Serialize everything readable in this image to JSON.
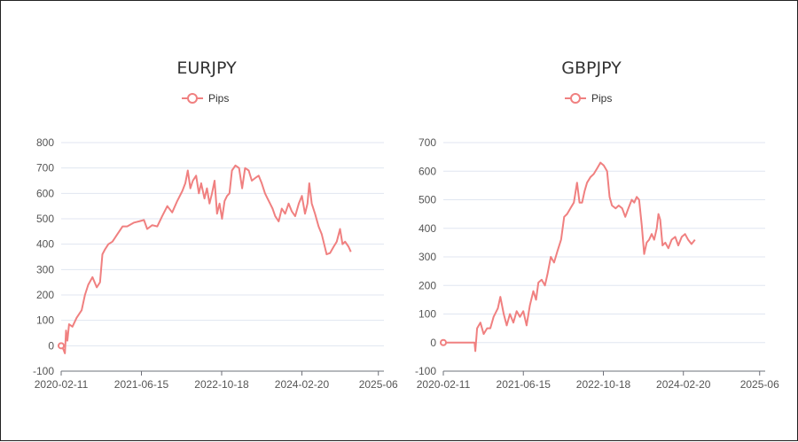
{
  "colors": {
    "series": "#f08080",
    "grid": "#e0e6f1",
    "axis": "#6e7079"
  },
  "chart_data": [
    {
      "type": "line",
      "title": "EURJPY",
      "legend": "Pips",
      "ylim": [
        -100,
        800
      ],
      "yticks": [
        -100,
        0,
        100,
        200,
        300,
        400,
        500,
        600,
        700,
        800
      ],
      "xticks": [
        "2020-02-11",
        "2021-06-15",
        "2022-10-18",
        "2024-02-20",
        "2025-06"
      ],
      "xlim": [
        "2020-02-11",
        "2025-07-05"
      ],
      "grid": true,
      "series": [
        {
          "name": "Pips",
          "points": [
            [
              "2020-02-11",
              0
            ],
            [
              "2020-02-25",
              -15
            ],
            [
              "2020-03-05",
              -30
            ],
            [
              "2020-03-12",
              60
            ],
            [
              "2020-03-20",
              20
            ],
            [
              "2020-03-30",
              85
            ],
            [
              "2020-04-20",
              75
            ],
            [
              "2020-05-15",
              110
            ],
            [
              "2020-06-15",
              140
            ],
            [
              "2020-07-05",
              200
            ],
            [
              "2020-07-25",
              240
            ],
            [
              "2020-08-20",
              270
            ],
            [
              "2020-09-15",
              230
            ],
            [
              "2020-10-05",
              250
            ],
            [
              "2020-10-20",
              360
            ],
            [
              "2020-11-05",
              380
            ],
            [
              "2020-11-25",
              400
            ],
            [
              "2020-12-20",
              410
            ],
            [
              "2021-01-20",
              440
            ],
            [
              "2021-02-20",
              470
            ],
            [
              "2021-03-20",
              470
            ],
            [
              "2021-05-01",
              485
            ],
            [
              "2021-06-01",
              490
            ],
            [
              "2021-07-01",
              495
            ],
            [
              "2021-07-20",
              460
            ],
            [
              "2021-08-20",
              475
            ],
            [
              "2021-09-20",
              470
            ],
            [
              "2021-10-20",
              510
            ],
            [
              "2021-11-20",
              550
            ],
            [
              "2021-12-20",
              525
            ],
            [
              "2022-01-20",
              570
            ],
            [
              "2022-02-20",
              610
            ],
            [
              "2022-03-10",
              640
            ],
            [
              "2022-03-25",
              690
            ],
            [
              "2022-04-10",
              620
            ],
            [
              "2022-04-25",
              650
            ],
            [
              "2022-05-15",
              670
            ],
            [
              "2022-06-01",
              600
            ],
            [
              "2022-06-15",
              640
            ],
            [
              "2022-07-05",
              580
            ],
            [
              "2022-07-20",
              620
            ],
            [
              "2022-08-05",
              560
            ],
            [
              "2022-08-20",
              600
            ],
            [
              "2022-09-05",
              650
            ],
            [
              "2022-09-20",
              520
            ],
            [
              "2022-10-05",
              560
            ],
            [
              "2022-10-20",
              500
            ],
            [
              "2022-11-05",
              570
            ],
            [
              "2022-11-20",
              590
            ],
            [
              "2022-12-05",
              600
            ],
            [
              "2022-12-20",
              690
            ],
            [
              "2023-01-10",
              710
            ],
            [
              "2023-02-01",
              700
            ],
            [
              "2023-02-20",
              620
            ],
            [
              "2023-03-10",
              700
            ],
            [
              "2023-04-01",
              690
            ],
            [
              "2023-04-20",
              650
            ],
            [
              "2023-05-10",
              660
            ],
            [
              "2023-06-01",
              670
            ],
            [
              "2023-06-20",
              640
            ],
            [
              "2023-07-10",
              600
            ],
            [
              "2023-07-25",
              580
            ],
            [
              "2023-08-10",
              560
            ],
            [
              "2023-08-25",
              540
            ],
            [
              "2023-09-10",
              510
            ],
            [
              "2023-10-01",
              490
            ],
            [
              "2023-10-20",
              540
            ],
            [
              "2023-11-10",
              520
            ],
            [
              "2023-12-01",
              560
            ],
            [
              "2023-12-20",
              530
            ],
            [
              "2024-01-10",
              510
            ],
            [
              "2024-02-01",
              560
            ],
            [
              "2024-02-20",
              590
            ],
            [
              "2024-03-10",
              520
            ],
            [
              "2024-03-25",
              560
            ],
            [
              "2024-04-05",
              640
            ],
            [
              "2024-04-20",
              560
            ],
            [
              "2024-05-10",
              520
            ],
            [
              "2024-06-01",
              470
            ],
            [
              "2024-06-20",
              440
            ],
            [
              "2024-07-05",
              400
            ],
            [
              "2024-07-20",
              360
            ],
            [
              "2024-08-10",
              365
            ],
            [
              "2024-09-01",
              390
            ],
            [
              "2024-09-20",
              410
            ],
            [
              "2024-10-10",
              460
            ],
            [
              "2024-10-25",
              400
            ],
            [
              "2024-11-10",
              410
            ],
            [
              "2024-12-01",
              390
            ],
            [
              "2024-12-15",
              370
            ]
          ]
        }
      ]
    },
    {
      "type": "line",
      "title": "GBPJPY",
      "legend": "Pips",
      "ylim": [
        -100,
        700
      ],
      "yticks": [
        -100,
        0,
        100,
        200,
        300,
        400,
        500,
        600,
        700
      ],
      "xticks": [
        "2020-02-11",
        "2021-06-15",
        "2022-10-18",
        "2024-02-20",
        "2025-06"
      ],
      "xlim": [
        "2020-02-11",
        "2025-07-05"
      ],
      "grid": true,
      "series": [
        {
          "name": "Pips",
          "points": [
            [
              "2020-02-11",
              0
            ],
            [
              "2020-08-20",
              0
            ],
            [
              "2020-08-25",
              -30
            ],
            [
              "2020-09-05",
              50
            ],
            [
              "2020-09-25",
              70
            ],
            [
              "2020-10-15",
              30
            ],
            [
              "2020-11-05",
              50
            ],
            [
              "2020-11-25",
              50
            ],
            [
              "2020-12-15",
              90
            ],
            [
              "2021-01-10",
              120
            ],
            [
              "2021-01-25",
              160
            ],
            [
              "2021-02-15",
              100
            ],
            [
              "2021-03-05",
              60
            ],
            [
              "2021-03-25",
              100
            ],
            [
              "2021-04-15",
              70
            ],
            [
              "2021-05-05",
              110
            ],
            [
              "2021-05-25",
              90
            ],
            [
              "2021-06-15",
              110
            ],
            [
              "2021-07-05",
              60
            ],
            [
              "2021-07-25",
              130
            ],
            [
              "2021-08-15",
              180
            ],
            [
              "2021-09-01",
              150
            ],
            [
              "2021-09-15",
              210
            ],
            [
              "2021-10-05",
              220
            ],
            [
              "2021-10-25",
              200
            ],
            [
              "2021-11-10",
              240
            ],
            [
              "2021-11-30",
              300
            ],
            [
              "2021-12-20",
              280
            ],
            [
              "2022-01-10",
              320
            ],
            [
              "2022-02-01",
              360
            ],
            [
              "2022-02-20",
              440
            ],
            [
              "2022-03-10",
              450
            ],
            [
              "2022-03-30",
              470
            ],
            [
              "2022-04-20",
              490
            ],
            [
              "2022-05-10",
              560
            ],
            [
              "2022-05-25",
              490
            ],
            [
              "2022-06-10",
              490
            ],
            [
              "2022-06-25",
              530
            ],
            [
              "2022-07-10",
              560
            ],
            [
              "2022-08-01",
              580
            ],
            [
              "2022-08-20",
              590
            ],
            [
              "2022-09-10",
              610
            ],
            [
              "2022-09-30",
              630
            ],
            [
              "2022-10-20",
              620
            ],
            [
              "2022-11-10",
              600
            ],
            [
              "2022-11-25",
              510
            ],
            [
              "2022-12-10",
              480
            ],
            [
              "2023-01-01",
              470
            ],
            [
              "2023-01-20",
              480
            ],
            [
              "2023-02-10",
              470
            ],
            [
              "2023-03-01",
              440
            ],
            [
              "2023-03-20",
              470
            ],
            [
              "2023-04-10",
              500
            ],
            [
              "2023-04-25",
              490
            ],
            [
              "2023-05-10",
              510
            ],
            [
              "2023-05-25",
              500
            ],
            [
              "2023-06-10",
              410
            ],
            [
              "2023-06-25",
              310
            ],
            [
              "2023-07-10",
              350
            ],
            [
              "2023-07-25",
              360
            ],
            [
              "2023-08-10",
              380
            ],
            [
              "2023-08-25",
              360
            ],
            [
              "2023-09-10",
              400
            ],
            [
              "2023-09-20",
              450
            ],
            [
              "2023-10-01",
              430
            ],
            [
              "2023-10-15",
              340
            ],
            [
              "2023-11-01",
              350
            ],
            [
              "2023-11-20",
              330
            ],
            [
              "2023-12-10",
              360
            ],
            [
              "2024-01-01",
              370
            ],
            [
              "2024-01-20",
              340
            ],
            [
              "2024-02-10",
              370
            ],
            [
              "2024-03-01",
              380
            ],
            [
              "2024-03-20",
              360
            ],
            [
              "2024-04-10",
              345
            ],
            [
              "2024-05-01",
              360
            ]
          ]
        }
      ]
    }
  ]
}
